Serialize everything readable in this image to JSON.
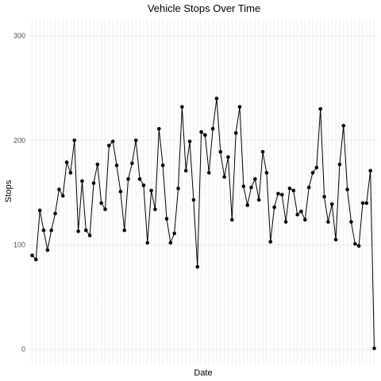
{
  "chart_data": {
    "type": "line",
    "title": "Vehicle Stops Over Time",
    "xlabel": "Date",
    "ylabel": "Stops",
    "ylim": [
      -15,
      316
    ],
    "yticks": [
      0,
      100,
      200,
      300
    ],
    "x_tick_labels_shown": false,
    "grid": true,
    "series": [
      {
        "values": [
          90,
          86,
          133,
          114,
          95,
          114,
          130,
          153,
          147,
          179,
          169,
          200,
          113,
          161,
          114,
          109,
          159,
          177,
          140,
          134,
          195,
          199,
          176,
          151,
          114,
          163,
          178,
          200,
          163,
          157,
          102,
          152,
          134,
          211,
          176,
          125,
          102,
          111,
          154,
          232,
          171,
          199,
          143,
          79,
          208,
          205,
          169,
          211,
          240,
          189,
          165,
          184,
          124,
          207,
          232,
          156,
          138,
          155,
          163,
          143,
          189,
          169,
          103,
          136,
          149,
          148,
          122,
          154,
          152,
          129,
          132,
          124,
          155,
          169,
          174,
          230,
          146,
          122,
          139,
          105,
          177,
          214,
          153,
          122,
          101,
          99,
          140,
          140,
          171,
          1
        ]
      }
    ]
  }
}
